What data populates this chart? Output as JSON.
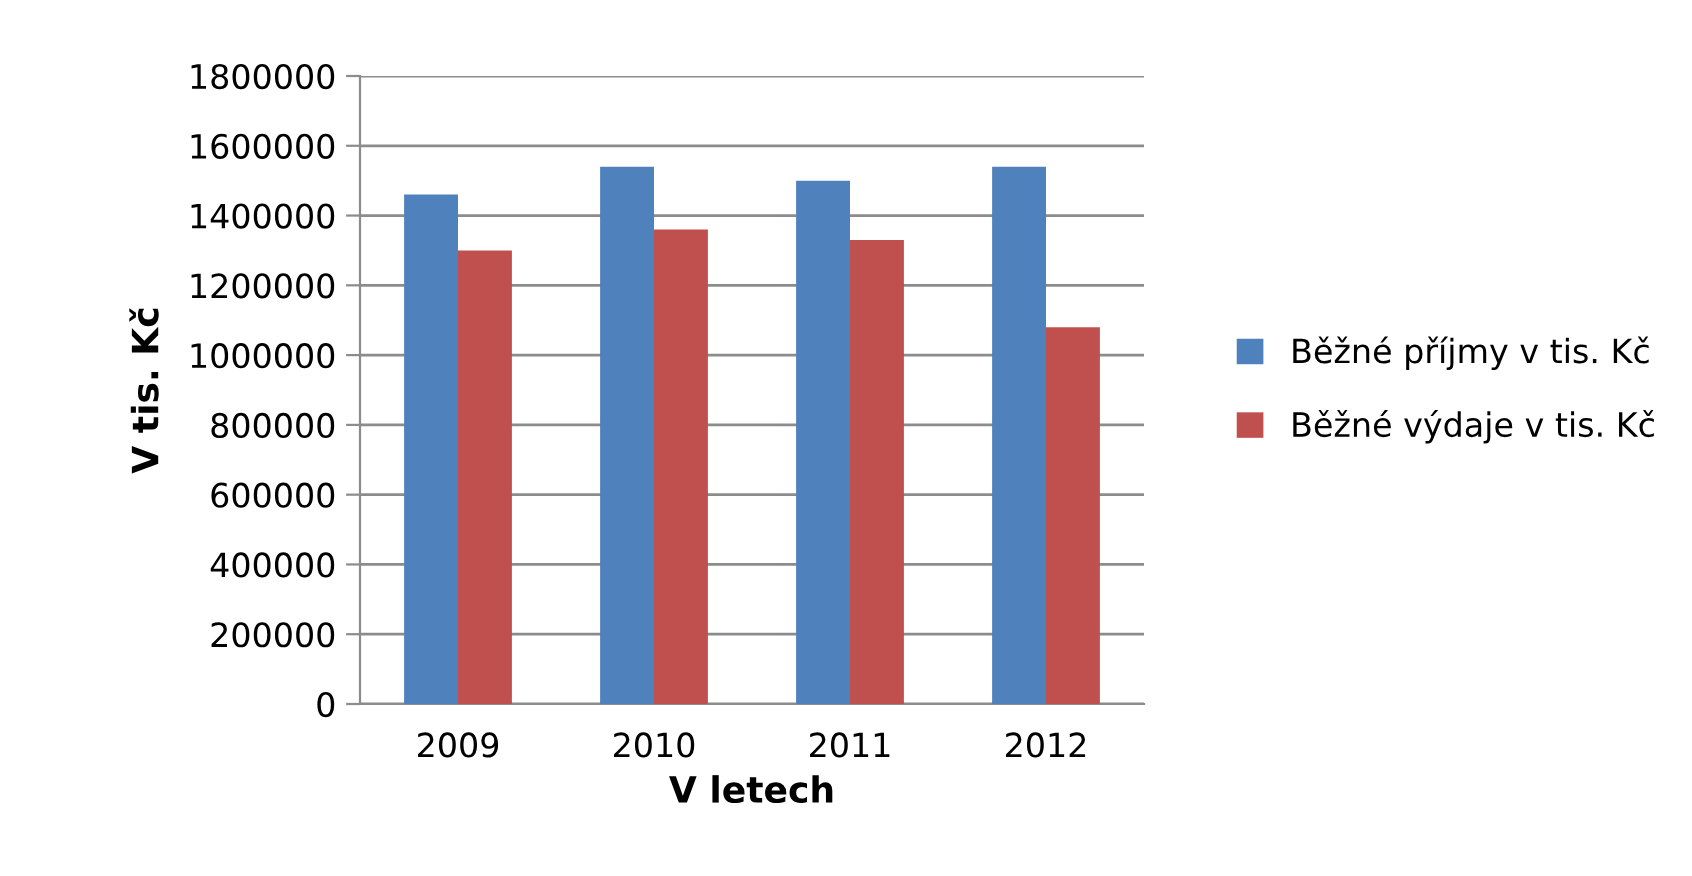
{
  "chart_data": {
    "type": "bar",
    "xlabel": "V letech",
    "ylabel": "V tis. Kč",
    "categories": [
      "2009",
      "2010",
      "2011",
      "2012"
    ],
    "series": [
      {
        "name": "Běžné příjmy v tis. Kč",
        "color": "#4f81bd",
        "values": [
          1460000,
          1540000,
          1500000,
          1540000
        ]
      },
      {
        "name": "Běžné výdaje v tis. Kč",
        "color": "#c0504d",
        "values": [
          1300000,
          1360000,
          1330000,
          1080000
        ]
      }
    ],
    "ylim": [
      0,
      1800000
    ],
    "yticks": [
      0,
      200000,
      400000,
      600000,
      800000,
      1000000,
      1200000,
      1400000,
      1600000,
      1800000
    ],
    "grid": "y",
    "legend": "right"
  }
}
